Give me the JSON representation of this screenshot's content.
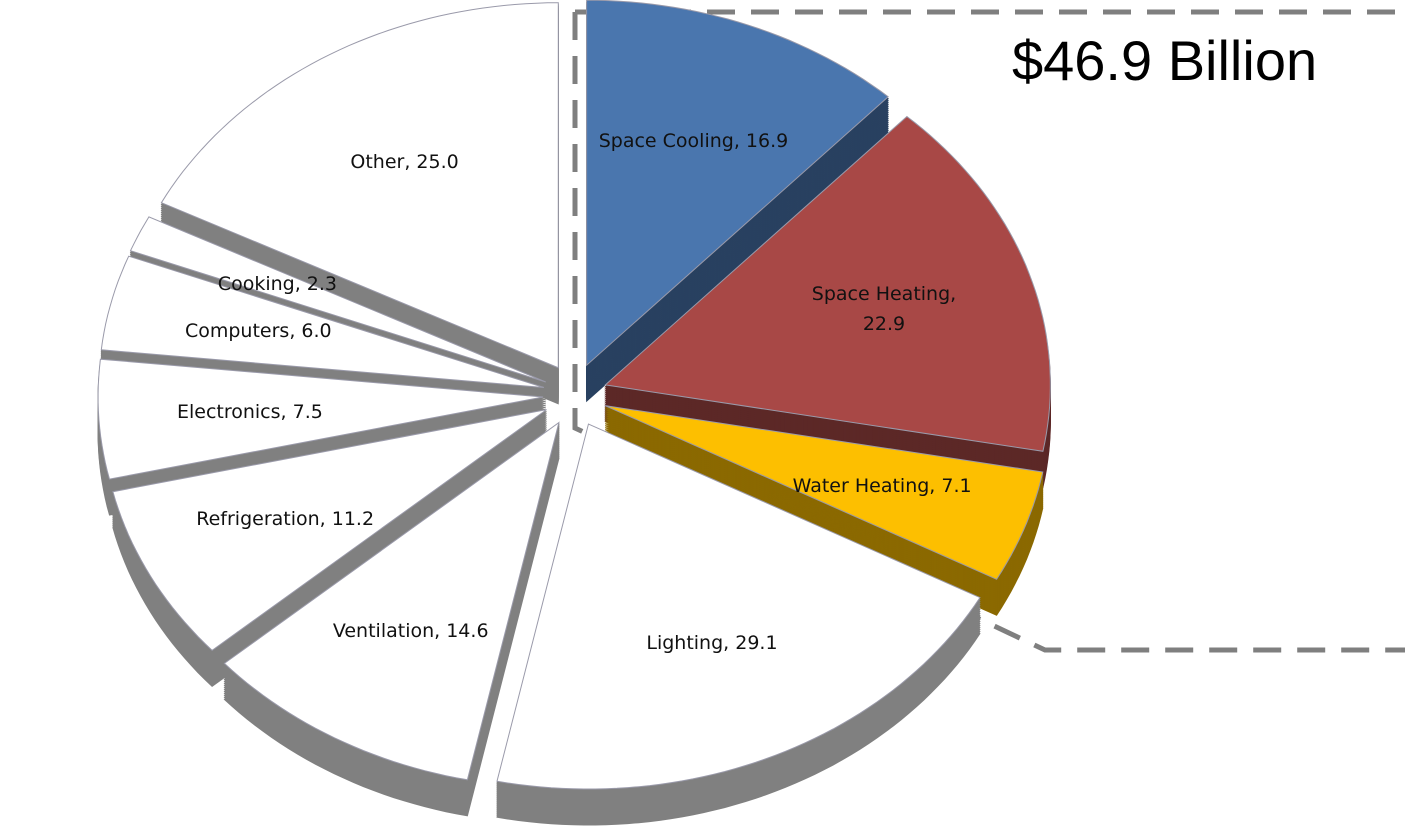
{
  "chart_data": {
    "type": "pie",
    "annotation": "$46.9 Billion",
    "values": [
      16.9,
      22.9,
      7.1,
      29.1,
      14.6,
      11.2,
      7.5,
      6.0,
      2.3,
      25.0
    ],
    "value_labels": [
      "Space Cooling, 16.9",
      "Space Heating, 22.9",
      "Water Heating, 7.1",
      "Lighting, 29.1",
      "Ventilation, 14.6",
      "Refrigeration, 11.2",
      "Electronics, 7.5",
      "Computers, 6.0",
      "Cooking, 2.3",
      "Other, 25.0"
    ],
    "colors": [
      "#4a76ae",
      "#a84846",
      "#fdbf00",
      "#ffffff",
      "#ffffff",
      "#ffffff",
      "#ffffff",
      "#ffffff",
      "#ffffff",
      "#ffffff"
    ]
  }
}
